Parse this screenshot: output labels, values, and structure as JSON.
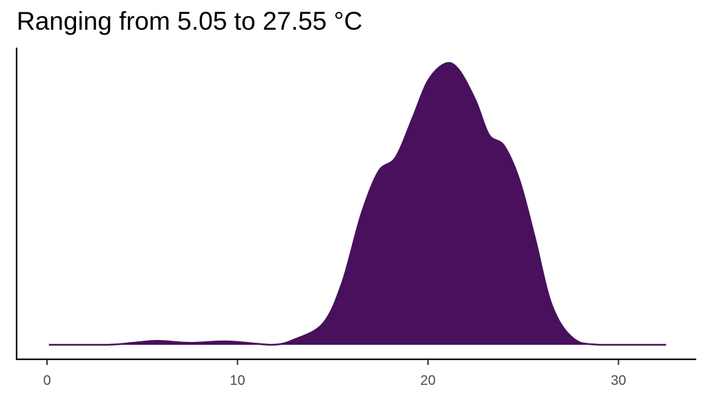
{
  "chart_data": {
    "type": "area",
    "subtype": "density",
    "title": "Ranging from 5.05 to 27.55 °C",
    "xlabel": "",
    "ylabel": "",
    "xlim": [
      0,
      32.5
    ],
    "ylim": [
      0,
      1.0
    ],
    "x_ticks": [
      0,
      10,
      20,
      30
    ],
    "x_tick_labels": [
      "0",
      "10",
      "20",
      "30"
    ],
    "grid": false,
    "legend": "none",
    "fill_color": "#48105d",
    "density_points": [
      {
        "x": 0.1,
        "y": 0.0
      },
      {
        "x": 3.2,
        "y": 0.0
      },
      {
        "x": 4.5,
        "y": 0.007
      },
      {
        "x": 5.8,
        "y": 0.014
      },
      {
        "x": 7.5,
        "y": 0.007
      },
      {
        "x": 9.5,
        "y": 0.012
      },
      {
        "x": 11.8,
        "y": 0.0
      },
      {
        "x": 13.0,
        "y": 0.019
      },
      {
        "x": 14.5,
        "y": 0.076
      },
      {
        "x": 15.5,
        "y": 0.22
      },
      {
        "x": 16.5,
        "y": 0.46
      },
      {
        "x": 17.4,
        "y": 0.61
      },
      {
        "x": 18.3,
        "y": 0.66
      },
      {
        "x": 19.2,
        "y": 0.8
      },
      {
        "x": 20.0,
        "y": 0.93
      },
      {
        "x": 20.9,
        "y": 0.99
      },
      {
        "x": 21.6,
        "y": 0.97
      },
      {
        "x": 22.5,
        "y": 0.86
      },
      {
        "x": 23.2,
        "y": 0.74
      },
      {
        "x": 24.0,
        "y": 0.7
      },
      {
        "x": 24.8,
        "y": 0.58
      },
      {
        "x": 25.6,
        "y": 0.38
      },
      {
        "x": 26.5,
        "y": 0.14
      },
      {
        "x": 27.6,
        "y": 0.024
      },
      {
        "x": 29.0,
        "y": 0.0
      },
      {
        "x": 32.5,
        "y": 0.0
      }
    ]
  }
}
